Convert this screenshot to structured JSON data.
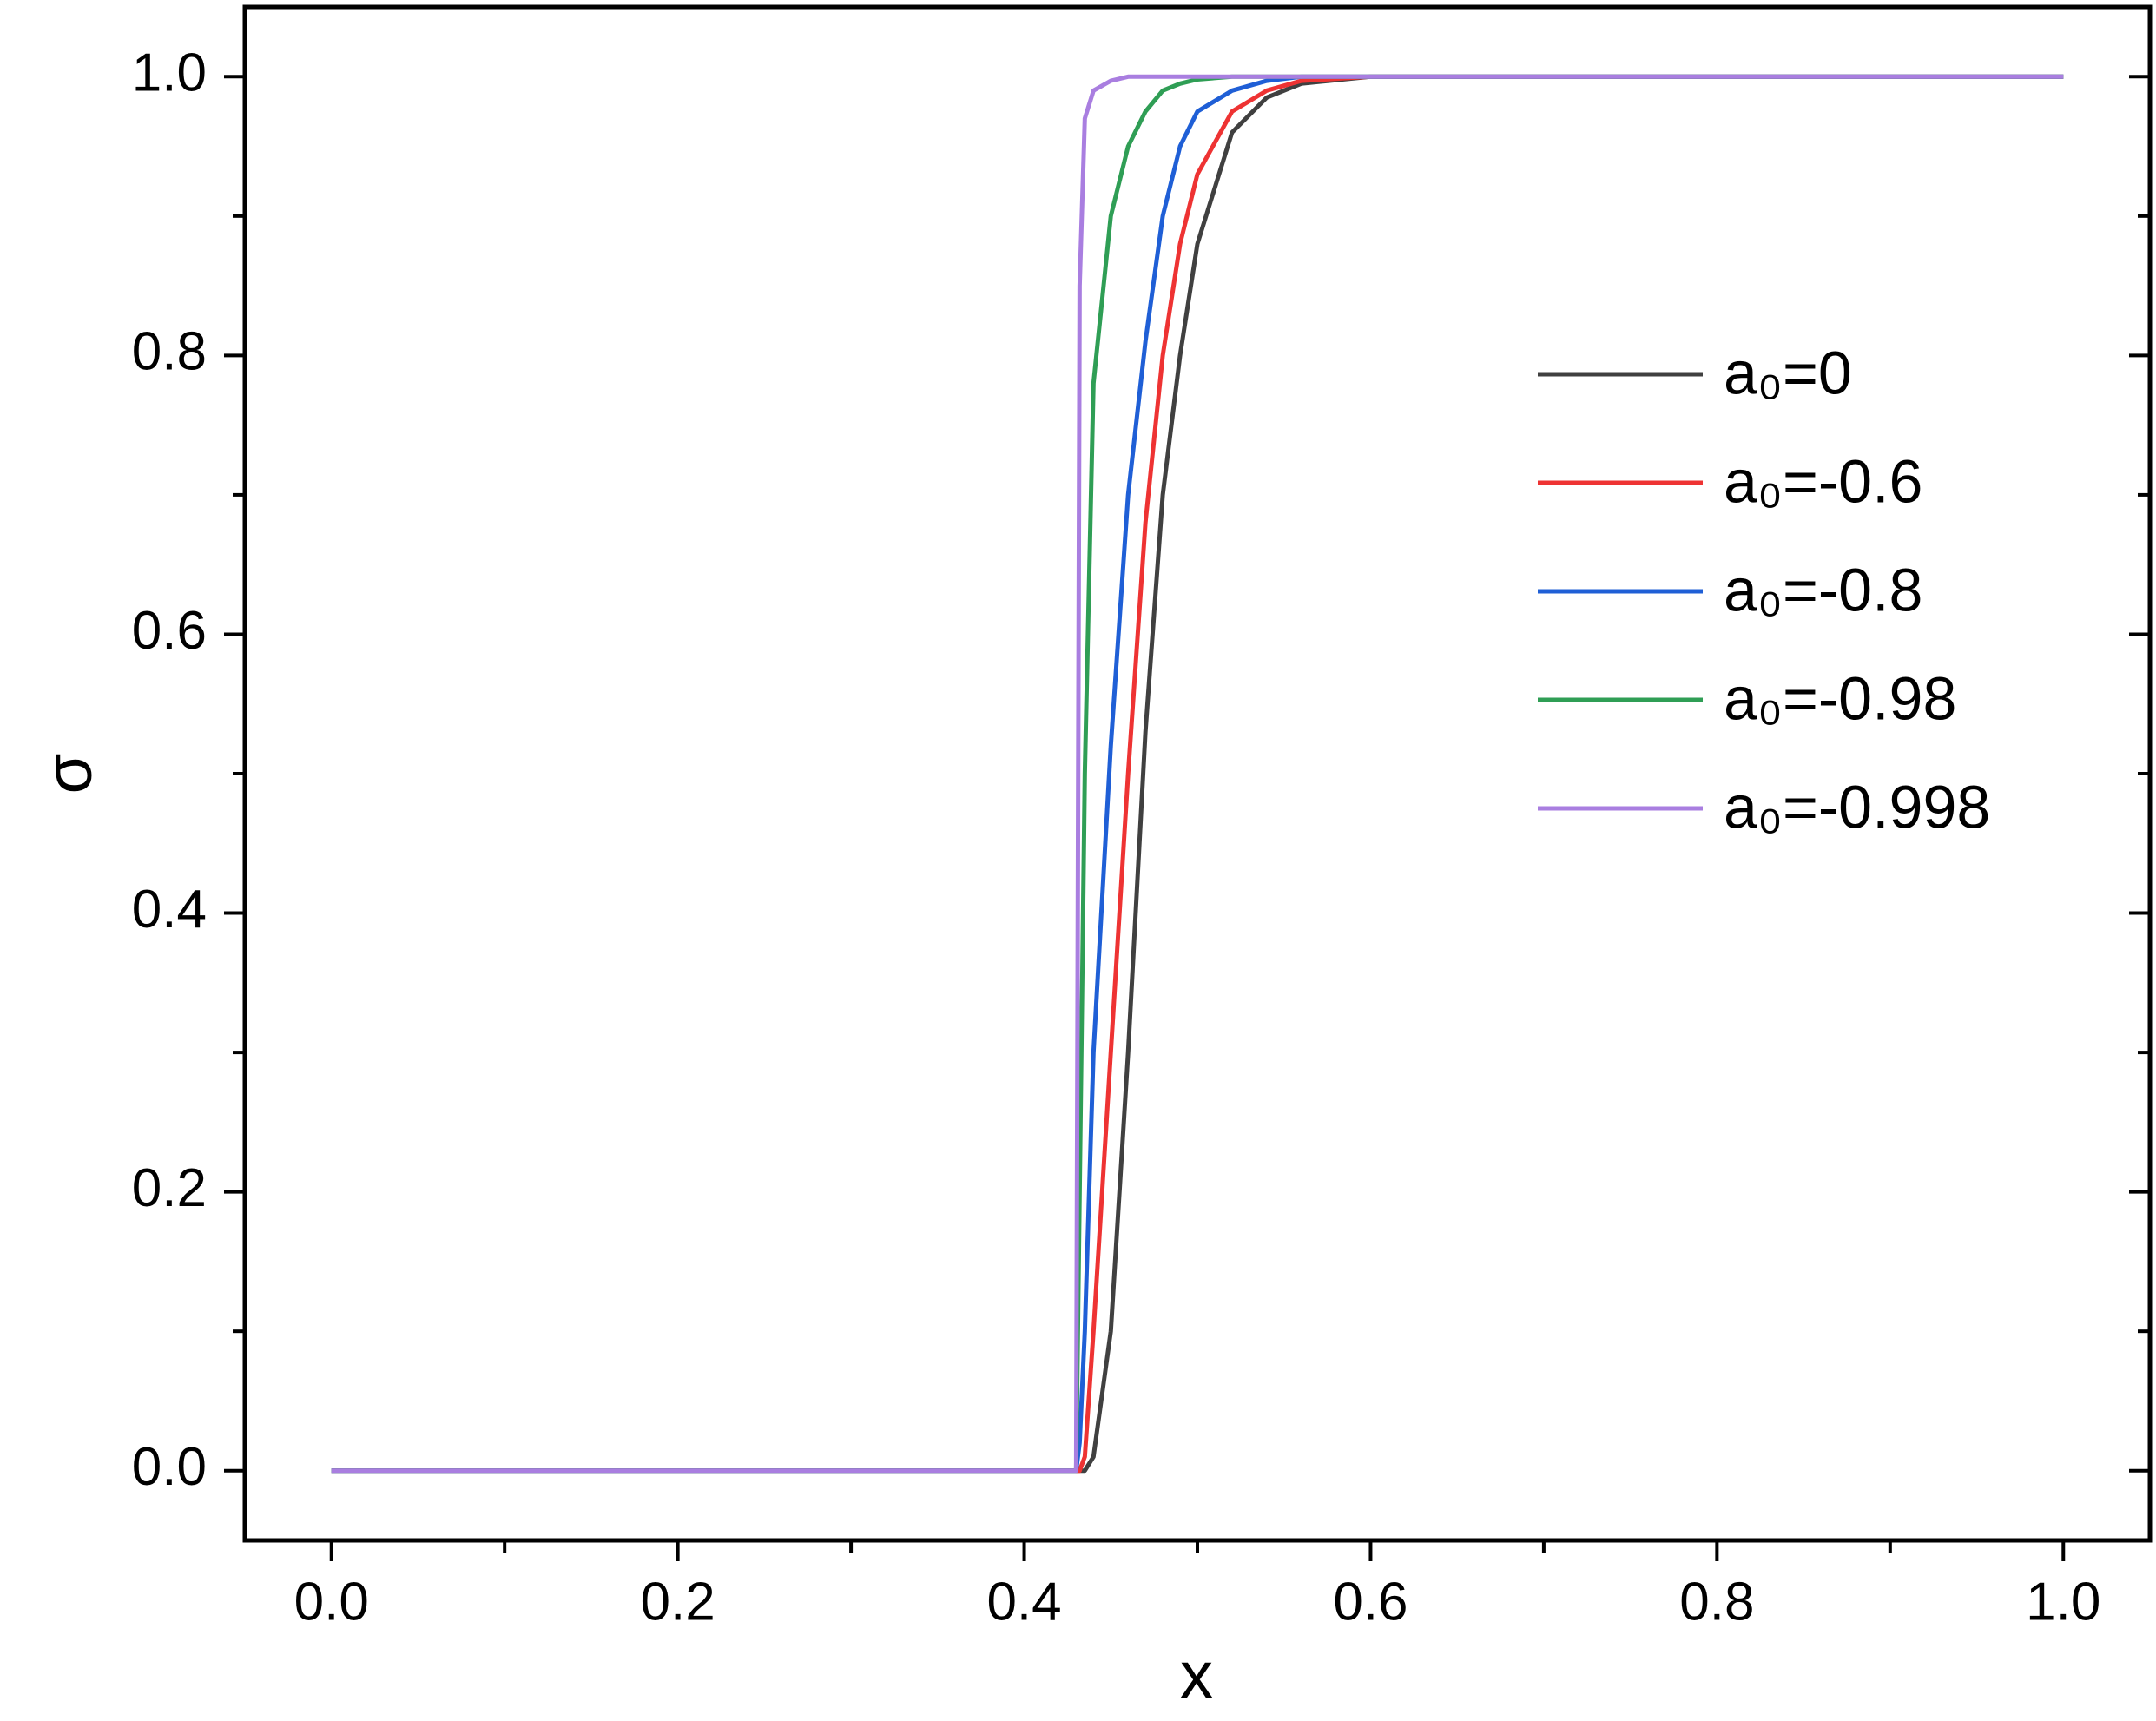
{
  "chart_data": {
    "type": "line",
    "xlabel": "x",
    "ylabel": "σ",
    "x": [
      0,
      0.43,
      0.432,
      0.435,
      0.44,
      0.45,
      0.46,
      0.47,
      0.48,
      0.49,
      0.5,
      0.52,
      0.54,
      0.56,
      0.6,
      0.7,
      1.0
    ],
    "series": [
      {
        "name": "a₀=0",
        "color": "#404040",
        "values": [
          0,
          0,
          0,
          0,
          0.01,
          0.1,
          0.3,
          0.53,
          0.7,
          0.8,
          0.88,
          0.96,
          0.985,
          0.995,
          1,
          1,
          1
        ]
      },
      {
        "name": "a₀=-0.6",
        "color": "#ee3333",
        "values": [
          0,
          0,
          0,
          0.01,
          0.1,
          0.3,
          0.5,
          0.68,
          0.8,
          0.88,
          0.93,
          0.975,
          0.99,
          0.997,
          1,
          1,
          1
        ]
      },
      {
        "name": "a₀=-0.8",
        "color": "#1f5fd6",
        "values": [
          0,
          0,
          0.02,
          0.1,
          0.3,
          0.52,
          0.7,
          0.81,
          0.9,
          0.95,
          0.975,
          0.99,
          0.997,
          1,
          1,
          1,
          1
        ]
      },
      {
        "name": "a₀=-0.98",
        "color": "#2f9e55",
        "values": [
          0,
          0,
          0.2,
          0.5,
          0.78,
          0.9,
          0.95,
          0.975,
          0.99,
          0.995,
          0.998,
          1,
          1,
          1,
          1,
          1,
          1
        ]
      },
      {
        "name": "a₀=-0.998",
        "color": "#a97ee0",
        "values": [
          0,
          0,
          0.85,
          0.97,
          0.99,
          0.997,
          1,
          1,
          1,
          1,
          1,
          1,
          1,
          1,
          1,
          1,
          1
        ]
      }
    ],
    "xlim": [
      -0.05,
      1.05
    ],
    "ylim": [
      -0.05,
      1.05
    ],
    "xticks": [
      {
        "value": 0,
        "label": "0.0"
      },
      0.2,
      0.4,
      0.6,
      0.8,
      {
        "value": 1,
        "label": "1.0"
      }
    ],
    "yticks": [
      {
        "value": 0,
        "label": "0.0"
      },
      0.2,
      0.4,
      0.6,
      0.8,
      {
        "value": 1,
        "label": "1.0"
      }
    ],
    "grid": false,
    "legend": "right"
  }
}
